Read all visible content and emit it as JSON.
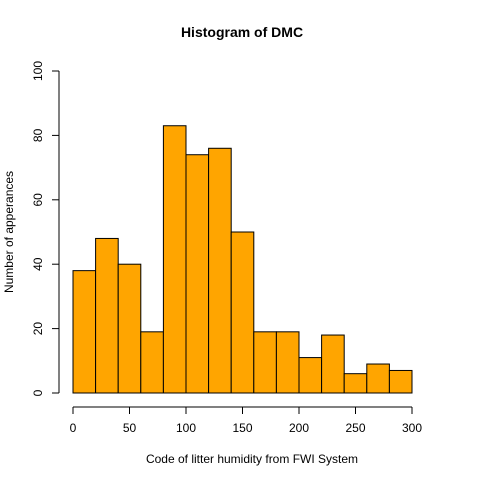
{
  "chart_data": {
    "type": "bar",
    "title": "Histogram of DMC",
    "xlabel": "Code of litter humidity from FWI System",
    "ylabel": "Number of apperances",
    "bins": [
      {
        "start": 0,
        "end": 20,
        "count": 38
      },
      {
        "start": 20,
        "end": 40,
        "count": 48
      },
      {
        "start": 40,
        "end": 60,
        "count": 40
      },
      {
        "start": 60,
        "end": 80,
        "count": 19
      },
      {
        "start": 80,
        "end": 100,
        "count": 83
      },
      {
        "start": 100,
        "end": 120,
        "count": 74
      },
      {
        "start": 120,
        "end": 140,
        "count": 76
      },
      {
        "start": 140,
        "end": 160,
        "count": 50
      },
      {
        "start": 160,
        "end": 180,
        "count": 19
      },
      {
        "start": 180,
        "end": 200,
        "count": 19
      },
      {
        "start": 200,
        "end": 220,
        "count": 11
      },
      {
        "start": 220,
        "end": 240,
        "count": 18
      },
      {
        "start": 240,
        "end": 260,
        "count": 6
      },
      {
        "start": 260,
        "end": 280,
        "count": 9
      },
      {
        "start": 280,
        "end": 300,
        "count": 7
      }
    ],
    "xlim": [
      0,
      300
    ],
    "ylim": [
      0,
      100
    ],
    "x_ticks": [
      "0",
      "50",
      "100",
      "150",
      "200",
      "250",
      "300"
    ],
    "y_ticks": [
      "0",
      "20",
      "40",
      "60",
      "80",
      "100"
    ],
    "bar_color": "#FFA500",
    "bar_border_color": "#000000",
    "grid": false,
    "legend": "none"
  }
}
